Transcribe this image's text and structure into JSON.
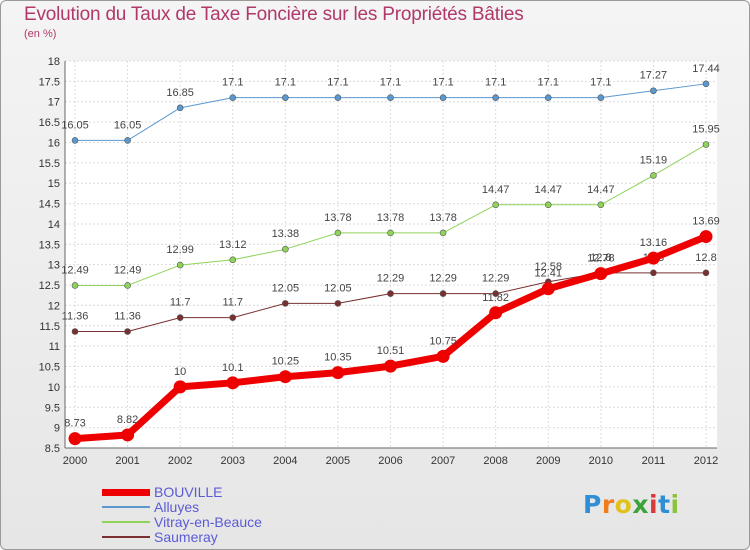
{
  "title": "Evolution du Taux de Taxe Foncière sur les Propriétés Bâties",
  "subtitle": "(en %)",
  "logo": {
    "chars": [
      "P",
      "r",
      "o",
      "x",
      "i",
      "t",
      "i"
    ],
    "colors": [
      "#2e8fd6",
      "#f07d1a",
      "#e0c31a",
      "#3aa33a",
      "#d93a3a",
      "#2e8fd6",
      "#8bc43a"
    ]
  },
  "chart_data": {
    "type": "line",
    "x": [
      "2000",
      "2001",
      "2002",
      "2003",
      "2004",
      "2005",
      "2006",
      "2007",
      "2008",
      "2009",
      "2010",
      "2011",
      "2012"
    ],
    "ylim": [
      8.5,
      18
    ],
    "yticks": [
      "8.5",
      "9",
      "9.5",
      "10",
      "10.5",
      "11",
      "11.5",
      "12",
      "12.5",
      "13",
      "13.5",
      "14",
      "14.5",
      "15",
      "15.5",
      "16",
      "16.5",
      "17",
      "17.5",
      "18"
    ],
    "grid": true,
    "legend_position": "bottom-left",
    "series": [
      {
        "name": "Alluyes",
        "color": "#5b98d0",
        "width": 1,
        "values": [
          16.05,
          16.05,
          16.85,
          17.1,
          17.1,
          17.1,
          17.1,
          17.1,
          17.1,
          17.1,
          17.1,
          17.27,
          17.44
        ],
        "labels": [
          "16.05",
          "16.05",
          "16.85",
          "17.1",
          "17.1",
          "17.1",
          "17.1",
          "17.1",
          "17.1",
          "17.1",
          "17.1",
          "17.27",
          "17.44"
        ]
      },
      {
        "name": "Vitray-en-Beauce",
        "color": "#8fd35a",
        "width": 1,
        "values": [
          12.49,
          12.49,
          12.99,
          13.12,
          13.38,
          13.78,
          13.78,
          13.78,
          14.47,
          14.47,
          14.47,
          15.19,
          15.95
        ],
        "labels": [
          "12.49",
          "12.49",
          "12.99",
          "13.12",
          "13.38",
          "13.78",
          "13.78",
          "13.78",
          "14.47",
          "14.47",
          "14.47",
          "15.19",
          "15.95"
        ]
      },
      {
        "name": "Saumeray",
        "color": "#7a3030",
        "width": 1,
        "values": [
          11.36,
          11.36,
          11.7,
          11.7,
          12.05,
          12.05,
          12.29,
          12.29,
          12.29,
          12.58,
          12.8,
          12.8,
          12.8
        ],
        "labels": [
          "11.36",
          "11.36",
          "11.7",
          "11.7",
          "12.05",
          "12.05",
          "12.29",
          "12.29",
          "12.29",
          "12.58",
          "12.8",
          "12.8",
          "12.8"
        ]
      },
      {
        "name": "BOUVILLE",
        "color": "#ee0000",
        "width": 7,
        "values": [
          8.73,
          8.82,
          10,
          10.1,
          10.25,
          10.35,
          10.51,
          10.75,
          11.82,
          12.41,
          12.78,
          13.16,
          13.69
        ],
        "labels": [
          "8.73",
          "8.82",
          "10",
          "10.1",
          "10.25",
          "10.35",
          "10.51",
          "10.75",
          "11.82",
          "12.41",
          "12.78",
          "13.16",
          "13.69"
        ]
      }
    ],
    "legend": [
      {
        "name": "BOUVILLE",
        "color": "#ee0000",
        "width": 7
      },
      {
        "name": "Alluyes",
        "color": "#5b98d0",
        "width": 2
      },
      {
        "name": "Vitray-en-Beauce",
        "color": "#8fd35a",
        "width": 2
      },
      {
        "name": "Saumeray",
        "color": "#7a3030",
        "width": 2
      }
    ]
  }
}
